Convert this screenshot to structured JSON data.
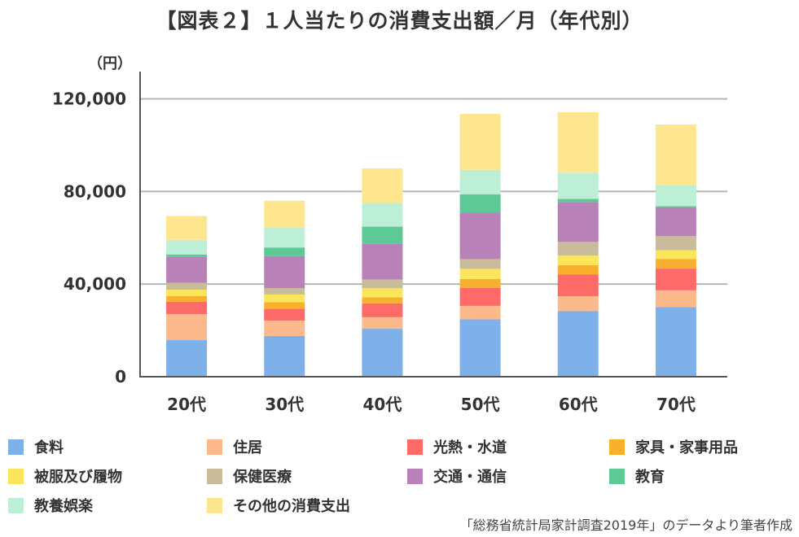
{
  "chart_data": {
    "type": "bar",
    "stacked": true,
    "title": "【図表２】１人当たりの消費支出額／月（年代別）",
    "ylabel": "（円）",
    "xlabel": "",
    "ylim": [
      0,
      130000
    ],
    "yticks": [
      0,
      40000,
      80000,
      120000
    ],
    "ytick_labels": [
      "0",
      "40,000",
      "80,000",
      "120,000"
    ],
    "grid": true,
    "categories": [
      "20代",
      "30代",
      "40代",
      "50代",
      "60代",
      "70代"
    ],
    "series": [
      {
        "name": "食料",
        "color": "#7eb0ea",
        "values": [
          15800,
          17600,
          20700,
          24800,
          28300,
          30100
        ]
      },
      {
        "name": "住居",
        "color": "#fbb98c",
        "values": [
          11200,
          6600,
          5000,
          5800,
          6500,
          7200
        ]
      },
      {
        "name": "光熱・水道",
        "color": "#fe6a68",
        "values": [
          5400,
          5200,
          6000,
          7800,
          9300,
          9400
        ]
      },
      {
        "name": "家具・家事用品",
        "color": "#f8b12c",
        "values": [
          2400,
          2800,
          2600,
          3800,
          4100,
          4200
        ]
      },
      {
        "name": "被服及び履物",
        "color": "#fbe55b",
        "values": [
          2800,
          3300,
          3900,
          4400,
          4100,
          3700
        ]
      },
      {
        "name": "保健医療",
        "color": "#c9bc9b",
        "values": [
          2900,
          2800,
          3800,
          4200,
          5900,
          6100
        ]
      },
      {
        "name": "交通・通信",
        "color": "#b882b8",
        "values": [
          11400,
          13800,
          15300,
          20000,
          17200,
          12500
        ]
      },
      {
        "name": "教育",
        "color": "#5cc996",
        "values": [
          900,
          3700,
          7500,
          8000,
          1400,
          500
        ]
      },
      {
        "name": "教養娯楽",
        "color": "#bdefd6",
        "values": [
          6300,
          8500,
          10200,
          10500,
          11300,
          9000
        ]
      },
      {
        "name": "その他の消費支出",
        "color": "#fde68e",
        "values": [
          10300,
          11700,
          15000,
          24200,
          26100,
          26200
        ]
      }
    ]
  },
  "source": "「総務省統計局家計調査2019年」のデータより筆者作成"
}
